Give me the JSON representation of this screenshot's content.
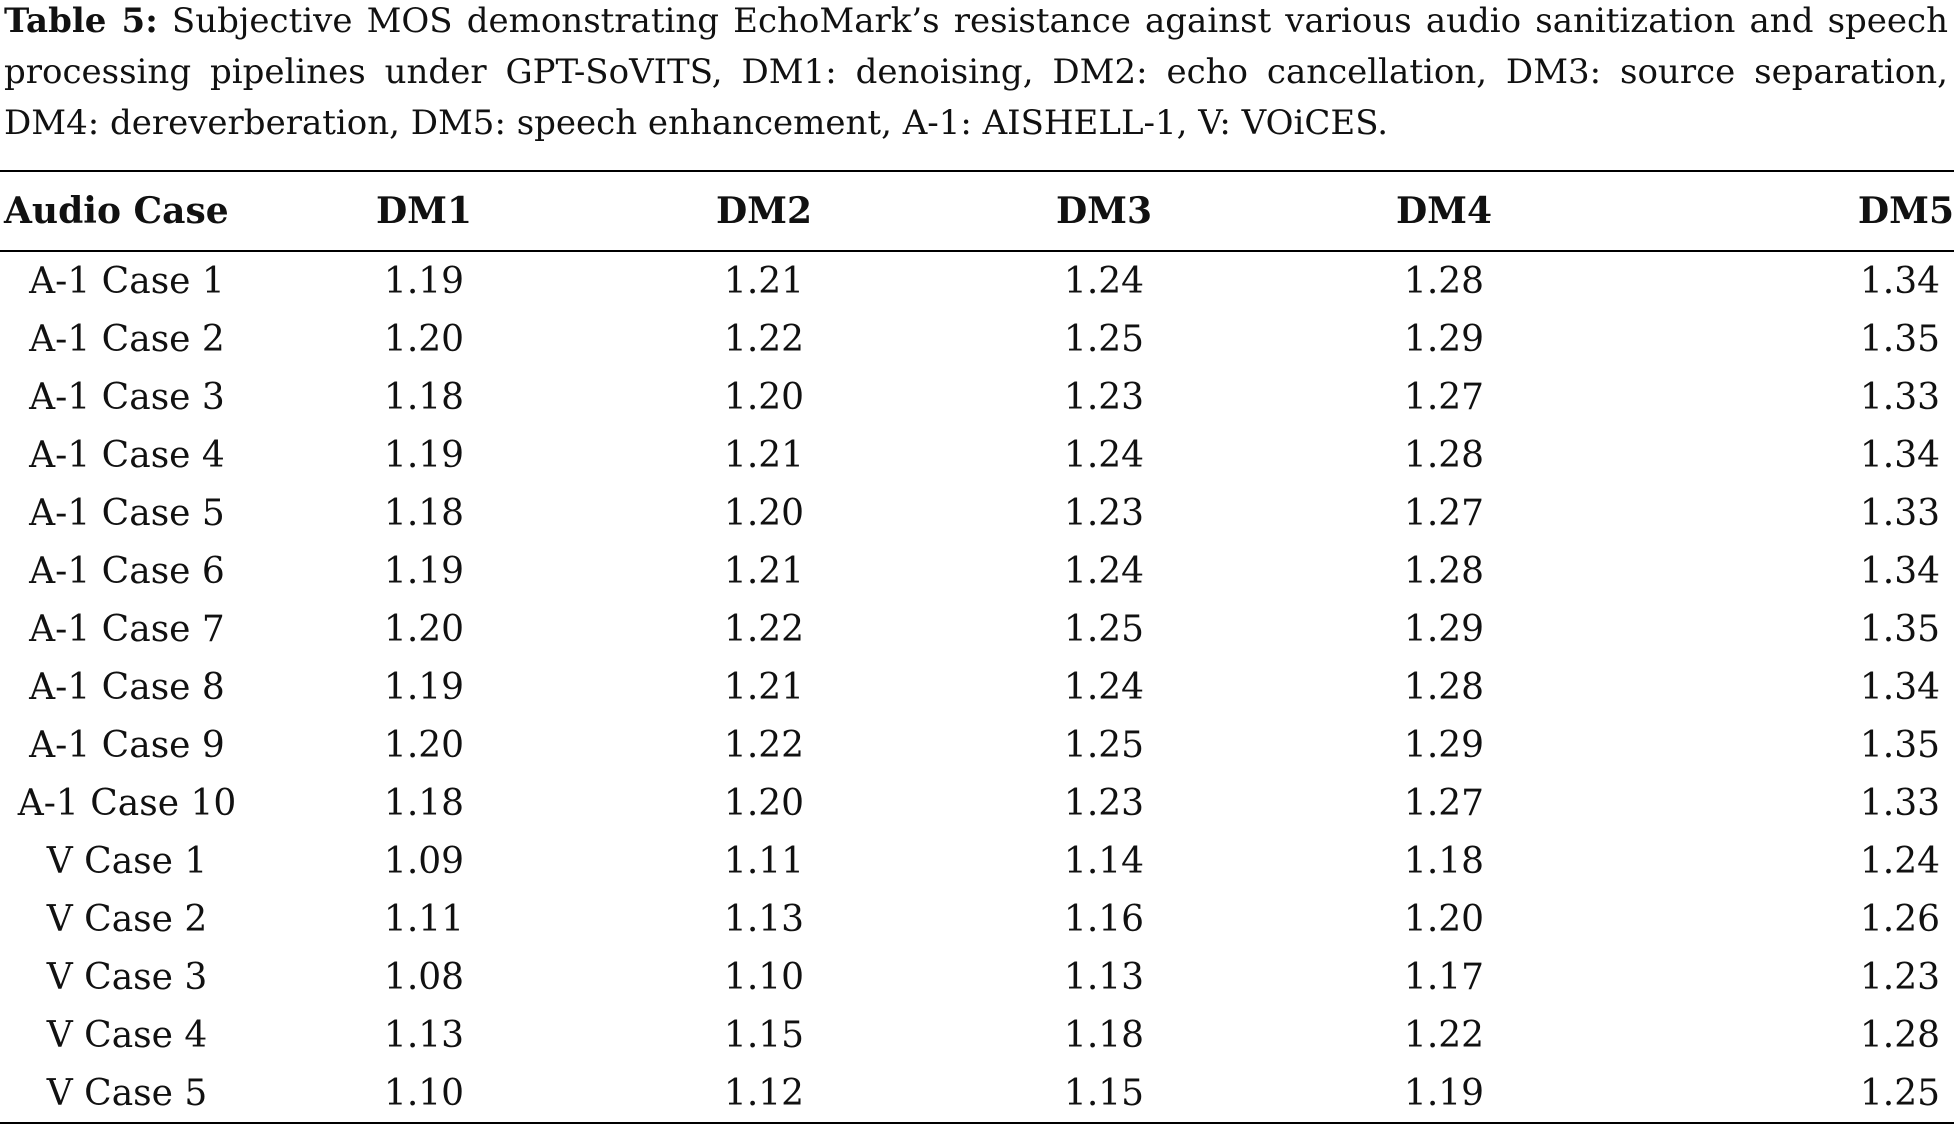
{
  "caption": {
    "label": "Table 5:",
    "text": "Subjective MOS demonstrating EchoMark’s resistance against various audio sanitization and speech processing pipelines under GPT-SoVITS, DM1: denoising, DM2: echo cancellation, DM3: source separation, DM4: dereverberation, DM5: speech enhancement, A-1: AISHELL-1, V: VOiCES."
  },
  "table": {
    "headers": [
      "Audio Case",
      "DM1",
      "DM2",
      "DM3",
      "DM4",
      "DM5"
    ],
    "rows": [
      [
        "A-1 Case 1",
        "1.19",
        "1.21",
        "1.24",
        "1.28",
        "1.34"
      ],
      [
        "A-1 Case 2",
        "1.20",
        "1.22",
        "1.25",
        "1.29",
        "1.35"
      ],
      [
        "A-1 Case 3",
        "1.18",
        "1.20",
        "1.23",
        "1.27",
        "1.33"
      ],
      [
        "A-1 Case 4",
        "1.19",
        "1.21",
        "1.24",
        "1.28",
        "1.34"
      ],
      [
        "A-1 Case 5",
        "1.18",
        "1.20",
        "1.23",
        "1.27",
        "1.33"
      ],
      [
        "A-1 Case 6",
        "1.19",
        "1.21",
        "1.24",
        "1.28",
        "1.34"
      ],
      [
        "A-1 Case 7",
        "1.20",
        "1.22",
        "1.25",
        "1.29",
        "1.35"
      ],
      [
        "A-1 Case 8",
        "1.19",
        "1.21",
        "1.24",
        "1.28",
        "1.34"
      ],
      [
        "A-1 Case 9",
        "1.20",
        "1.22",
        "1.25",
        "1.29",
        "1.35"
      ],
      [
        "A-1 Case 10",
        "1.18",
        "1.20",
        "1.23",
        "1.27",
        "1.33"
      ],
      [
        "V Case 1",
        "1.09",
        "1.11",
        "1.14",
        "1.18",
        "1.24"
      ],
      [
        "V Case 2",
        "1.11",
        "1.13",
        "1.16",
        "1.20",
        "1.26"
      ],
      [
        "V Case 3",
        "1.08",
        "1.10",
        "1.13",
        "1.17",
        "1.23"
      ],
      [
        "V Case 4",
        "1.13",
        "1.15",
        "1.18",
        "1.22",
        "1.28"
      ],
      [
        "V Case 5",
        "1.10",
        "1.12",
        "1.15",
        "1.19",
        "1.25"
      ]
    ]
  }
}
